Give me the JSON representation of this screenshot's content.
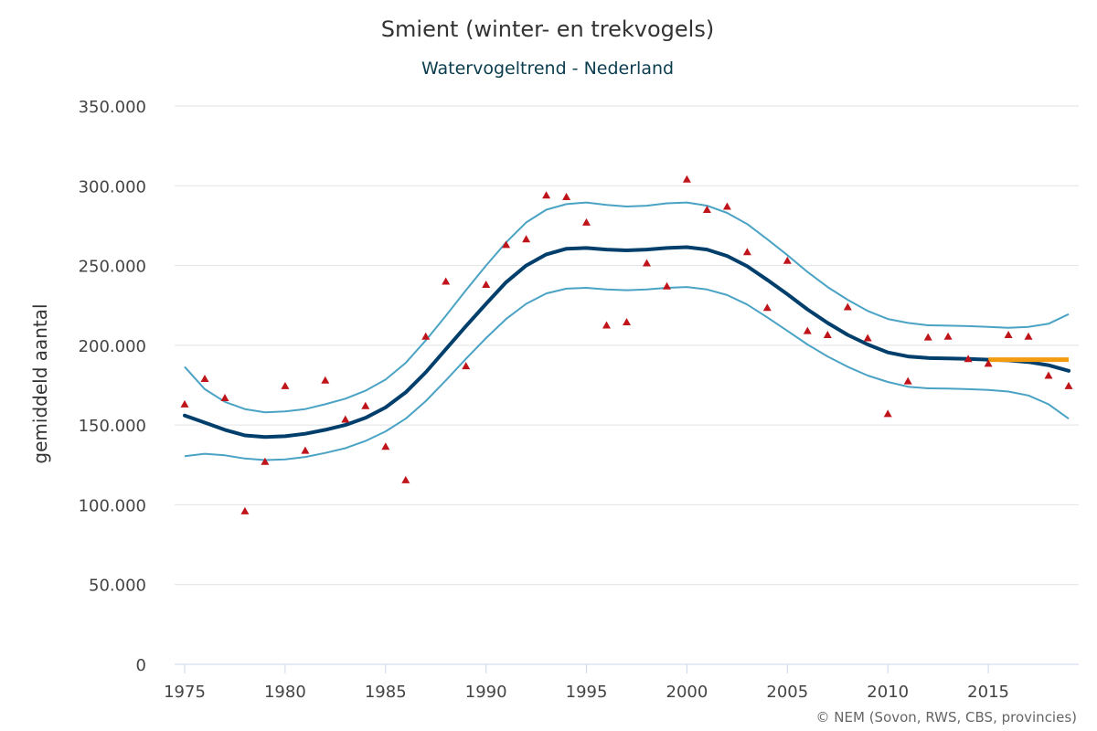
{
  "chart_data": {
    "type": "line",
    "title": "Smient (winter- en trekvogels)",
    "subtitle": "Watervogeltrend - Nederland",
    "ylabel": "gemiddeld aantal",
    "xlabel": "",
    "credit": "© NEM (Sovon, RWS, CBS, provincies)",
    "xlim": [
      1975,
      2019
    ],
    "ylim": [
      0,
      350000
    ],
    "x_ticks": [
      1975,
      1980,
      1985,
      1990,
      1995,
      2000,
      2005,
      2010,
      2015
    ],
    "x_tick_labels": [
      "1975",
      "1980",
      "1985",
      "1990",
      "1995",
      "2000",
      "2005",
      "2010",
      "2015"
    ],
    "y_ticks": [
      0,
      50000,
      100000,
      150000,
      200000,
      250000,
      300000,
      350000
    ],
    "y_tick_labels": [
      "0",
      "50.000",
      "100.000",
      "150.000",
      "200.000",
      "250.000",
      "300.000",
      "350.000"
    ],
    "grid": true,
    "legend": "none",
    "colors": {
      "trend": "#003e6b",
      "band": "#4aa3c4",
      "points": "#c0141b",
      "baseline": "#f39c12"
    },
    "series": [
      {
        "role": "trend",
        "x": [
          1975,
          1976,
          1977,
          1978,
          1979,
          1980,
          1981,
          1982,
          1983,
          1984,
          1985,
          1986,
          1987,
          1988,
          1989,
          1990,
          1991,
          1992,
          1993,
          1994,
          1995,
          1996,
          1997,
          1998,
          1999,
          2000,
          2001,
          2002,
          2003,
          2004,
          2005,
          2006,
          2007,
          2008,
          2009,
          2010,
          2011,
          2012,
          2013,
          2014,
          2015,
          2016,
          2017,
          2018,
          2019
        ],
        "y": [
          156000,
          151500,
          147000,
          143500,
          142500,
          143000,
          144500,
          147000,
          150000,
          154500,
          161000,
          170500,
          183000,
          197500,
          212000,
          226000,
          239500,
          250000,
          257000,
          260500,
          261000,
          260000,
          259500,
          260000,
          261000,
          261500,
          260000,
          256000,
          249500,
          241000,
          232000,
          222500,
          214000,
          206500,
          200500,
          195500,
          193000,
          192000,
          191800,
          191500,
          191000,
          190500,
          189500,
          187500,
          184000
        ]
      },
      {
        "role": "upper-bound",
        "x": [
          1975,
          1976,
          1977,
          1978,
          1979,
          1980,
          1981,
          1982,
          1983,
          1984,
          1985,
          1986,
          1987,
          1988,
          1989,
          1990,
          1991,
          1992,
          1993,
          1994,
          1995,
          1996,
          1997,
          1998,
          1999,
          2000,
          2001,
          2002,
          2003,
          2004,
          2005,
          2006,
          2007,
          2008,
          2009,
          2010,
          2011,
          2012,
          2013,
          2014,
          2015,
          2016,
          2017,
          2018,
          2019
        ],
        "y": [
          186500,
          172500,
          164500,
          160000,
          158000,
          158500,
          160000,
          163000,
          166500,
          171500,
          178500,
          189000,
          203000,
          218500,
          234500,
          250000,
          264500,
          277000,
          285000,
          288500,
          289500,
          288000,
          287000,
          287500,
          289000,
          289500,
          287500,
          283000,
          276000,
          266500,
          256500,
          246000,
          236500,
          228500,
          221500,
          216500,
          214000,
          212500,
          212300,
          212000,
          211500,
          211000,
          211500,
          213500,
          219500
        ]
      },
      {
        "role": "lower-bound",
        "x": [
          1975,
          1976,
          1977,
          1978,
          1979,
          1980,
          1981,
          1982,
          1983,
          1984,
          1985,
          1986,
          1987,
          1988,
          1989,
          1990,
          1991,
          1992,
          1993,
          1994,
          1995,
          1996,
          1997,
          1998,
          1999,
          2000,
          2001,
          2002,
          2003,
          2004,
          2005,
          2006,
          2007,
          2008,
          2009,
          2010,
          2011,
          2012,
          2013,
          2014,
          2015,
          2016,
          2017,
          2018,
          2019
        ],
        "y": [
          130500,
          132000,
          131000,
          129000,
          128000,
          128500,
          130000,
          132500,
          135500,
          140000,
          146000,
          154000,
          165000,
          178000,
          191500,
          204500,
          216500,
          226000,
          232500,
          235500,
          236000,
          235000,
          234500,
          235000,
          236000,
          236500,
          235000,
          231500,
          225500,
          217500,
          209000,
          200500,
          193000,
          186500,
          181000,
          177000,
          174000,
          173000,
          172800,
          172500,
          172000,
          171000,
          168500,
          163000,
          154000
        ]
      },
      {
        "role": "observed",
        "x": [
          1975,
          1976,
          1977,
          1978,
          1979,
          1980,
          1981,
          1982,
          1983,
          1984,
          1985,
          1986,
          1987,
          1988,
          1989,
          1990,
          1991,
          1992,
          1993,
          1994,
          1995,
          1996,
          1997,
          1998,
          1999,
          2000,
          2001,
          2002,
          2003,
          2004,
          2005,
          2006,
          2007,
          2008,
          2009,
          2010,
          2011,
          2012,
          2013,
          2014,
          2015,
          2016,
          2017,
          2018,
          2019
        ],
        "y": [
          163000,
          179000,
          167000,
          96000,
          127000,
          174500,
          134000,
          178000,
          153500,
          162000,
          136500,
          115500,
          205500,
          240000,
          187000,
          238000,
          263000,
          266500,
          294000,
          293000,
          277000,
          212500,
          214500,
          251500,
          237000,
          304000,
          285000,
          287000,
          258500,
          223500,
          253000,
          209000,
          206500,
          224000,
          204500,
          157000,
          177500,
          205000,
          205500,
          191500,
          188500,
          206500,
          205500,
          181000,
          174500
        ]
      },
      {
        "role": "baseline",
        "x": [
          2015,
          2019
        ],
        "y": [
          191000,
          191000
        ]
      }
    ]
  }
}
